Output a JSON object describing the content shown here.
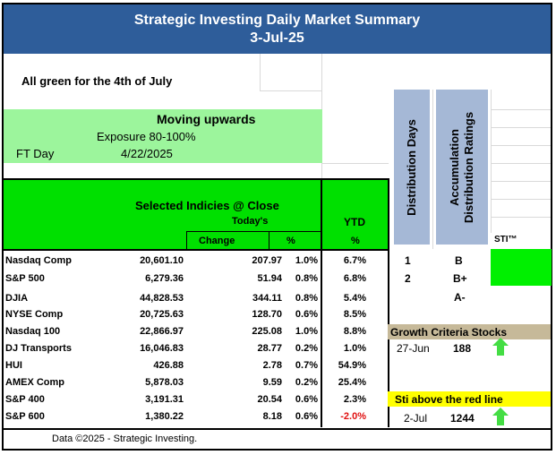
{
  "header": {
    "title": "Strategic Investing Daily Market Summary",
    "date": "3-Jul-25"
  },
  "note": "All green for the 4th of July",
  "moving": {
    "title": "Moving upwards",
    "exposure": "Exposure 80-100%",
    "ft_label": "FT Day",
    "ft_date": "4/22/2025",
    "color": "#9cf59c"
  },
  "table": {
    "title": "Selected Indicies @ Close",
    "todays": "Today's",
    "change": "Change",
    "pct": "%",
    "ytd": "YTD",
    "ytd_pct": "%",
    "rows": [
      {
        "name": "Nasdaq Comp",
        "close": "20,601.10",
        "change": "207.97",
        "pct": "1.0%",
        "ytd": "6.7%"
      },
      {
        "name": "S&P 500",
        "close": "6,279.36",
        "change": "51.94",
        "pct": "0.8%",
        "ytd": "6.8%"
      },
      {
        "name": "DJIA",
        "close": "44,828.53",
        "change": "344.11",
        "pct": "0.8%",
        "ytd": "5.4%"
      },
      {
        "name": "NYSE Comp",
        "close": "20,725.63",
        "change": "128.70",
        "pct": "0.6%",
        "ytd": "8.5%"
      },
      {
        "name": "Nasdaq 100",
        "close": "22,866.97",
        "change": "225.08",
        "pct": "1.0%",
        "ytd": "8.8%"
      },
      {
        "name": "DJ Transports",
        "close": "16,046.83",
        "change": "28.77",
        "pct": "0.2%",
        "ytd": "1.0%"
      },
      {
        "name": "HUI",
        "close": "426.88",
        "change": "2.78",
        "pct": "0.7%",
        "ytd": "54.9%"
      },
      {
        "name": "AMEX Comp",
        "close": "5,878.03",
        "change": "9.59",
        "pct": "0.2%",
        "ytd": "25.4%"
      },
      {
        "name": "S&P 400",
        "close": "3,191.31",
        "change": "20.54",
        "pct": "0.6%",
        "ytd": "2.3%"
      },
      {
        "name": "S&P 600",
        "close": "1,380.22",
        "change": "8.18",
        "pct": "0.6%",
        "ytd": "-2.0%"
      }
    ]
  },
  "side": {
    "distribution_label": "Distribution Days",
    "accumulation_label_1": "Accumulation",
    "accumulation_label_2": "Distribution Ratings",
    "sti_label": "STI™",
    "dist_nasdaq": "1",
    "dist_sp": "2",
    "rating_nasdaq": "B",
    "rating_sp": "B+",
    "rating_djia": "A-",
    "growth_label": "Growth Criteria Stocks",
    "growth_date": "27-Jun",
    "growth_value": "188",
    "sti_above_label": "Sti above the red line",
    "sti_above_date": "2-Jul",
    "sti_above_value": "1244",
    "arrow_icon": "up-arrow-icon",
    "arrow_color": "#44dd44",
    "sti_color": "#00f000"
  },
  "footer": "Data ©2025 -  Strategic Investing."
}
